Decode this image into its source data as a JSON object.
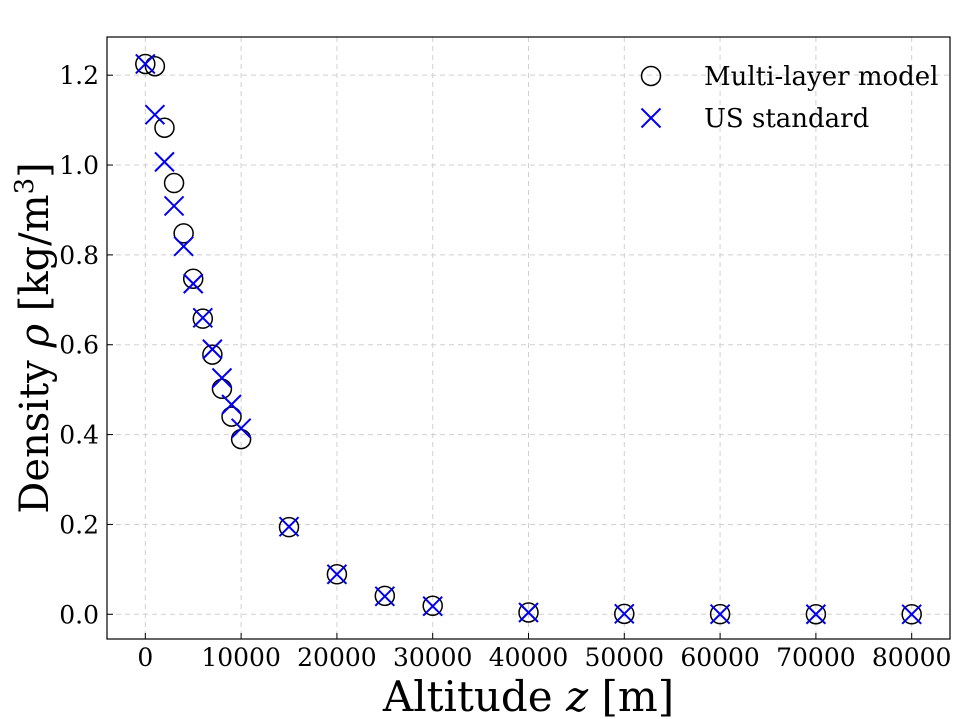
{
  "chart_data": {
    "type": "scatter",
    "xlabel_text": "Altitude ",
    "xlabel_var": "z",
    "xlabel_unit": " [m]",
    "ylabel_text": "Density ",
    "ylabel_var": "ρ",
    "ylabel_unit_pre": " [kg/m",
    "ylabel_unit_sup": "3",
    "ylabel_unit_post": "]",
    "xlim": [
      -4000,
      84000
    ],
    "ylim": [
      -0.055,
      1.285
    ],
    "xticks": [
      0,
      10000,
      20000,
      30000,
      40000,
      50000,
      60000,
      70000,
      80000
    ],
    "xtick_labels": [
      "0",
      "10000",
      "20000",
      "30000",
      "40000",
      "50000",
      "60000",
      "70000",
      "80000"
    ],
    "yticks": [
      0.0,
      0.2,
      0.4,
      0.6,
      0.8,
      1.0,
      1.2
    ],
    "ytick_labels": [
      "0.0",
      "0.2",
      "0.4",
      "0.6",
      "0.8",
      "1.0",
      "1.2"
    ],
    "grid": true,
    "legend_position": "top-right",
    "series": [
      {
        "name": "Multi-layer model",
        "marker": "circle",
        "color": "#000000",
        "x": [
          0,
          1000,
          2000,
          3000,
          4000,
          5000,
          6000,
          7000,
          8000,
          9000,
          10000,
          15000,
          20000,
          25000,
          30000,
          40000,
          50000,
          60000,
          70000,
          80000
        ],
        "y": [
          1.225,
          1.22,
          1.083,
          0.96,
          0.848,
          0.747,
          0.658,
          0.578,
          0.502,
          0.44,
          0.39,
          0.194,
          0.089,
          0.041,
          0.019,
          0.004,
          0.001,
          0.0003,
          0.0001,
          2e-05
        ]
      },
      {
        "name": "US standard",
        "marker": "x",
        "color": "#0000ee",
        "x": [
          0,
          1000,
          2000,
          3000,
          4000,
          5000,
          6000,
          7000,
          8000,
          9000,
          10000,
          15000,
          20000,
          25000,
          30000,
          40000,
          50000,
          60000,
          70000,
          80000
        ],
        "y": [
          1.225,
          1.112,
          1.007,
          0.909,
          0.819,
          0.736,
          0.66,
          0.59,
          0.526,
          0.467,
          0.414,
          0.195,
          0.089,
          0.04,
          0.018,
          0.004,
          0.001,
          0.0003,
          0.0001,
          2e-05
        ]
      }
    ]
  }
}
